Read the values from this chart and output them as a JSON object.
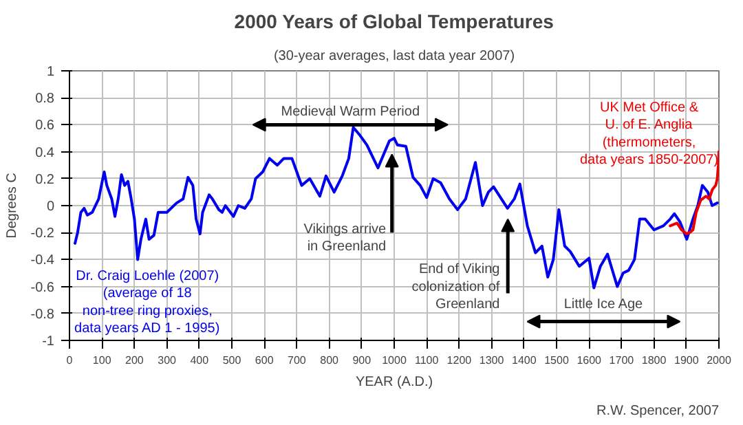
{
  "chart_data": {
    "type": "line",
    "title": "2000 Years of Global Temperatures",
    "subtitle": "(30-year averages, last data year 2007)",
    "xlabel": "YEAR (A.D.)",
    "ylabel": "Degrees C",
    "xlim": [
      0,
      2000
    ],
    "xticks": [
      0,
      100,
      200,
      300,
      400,
      500,
      600,
      700,
      800,
      900,
      1000,
      1100,
      1200,
      1300,
      1400,
      1500,
      1600,
      1700,
      1800,
      1900,
      2000
    ],
    "ylim": [
      -1,
      1
    ],
    "yticks": [
      -1,
      -0.8,
      -0.6,
      -0.4,
      -0.2,
      0,
      0.2,
      0.4,
      0.6,
      0.8,
      1
    ],
    "grid": true,
    "marker": "none",
    "line_style": "solid",
    "series": [
      {
        "name": "Dr. Craig Loehle (2007)\n(average of 18\nnon-tree ring proxies,\ndata years AD 1 - 1995)",
        "color": "#0000ee",
        "x": [
          17,
          25,
          35,
          45,
          55,
          70,
          90,
          100,
          107,
          115,
          130,
          140,
          150,
          160,
          170,
          180,
          190,
          200,
          210,
          220,
          235,
          245,
          260,
          273,
          300,
          330,
          350,
          365,
          380,
          390,
          402,
          410,
          430,
          440,
          460,
          470,
          480,
          505,
          520,
          540,
          560,
          573,
          595,
          616,
          640,
          660,
          685,
          700,
          715,
          740,
          771,
          790,
          815,
          840,
          860,
          874,
          895,
          916,
          950,
          985,
          1000,
          1010,
          1036,
          1058,
          1080,
          1100,
          1120,
          1143,
          1170,
          1195,
          1220,
          1250,
          1272,
          1290,
          1306,
          1330,
          1349,
          1370,
          1387,
          1410,
          1435,
          1455,
          1473,
          1490,
          1507,
          1525,
          1542,
          1570,
          1600,
          1615,
          1635,
          1657,
          1687,
          1705,
          1722,
          1740,
          1756,
          1773,
          1800,
          1829,
          1850,
          1863,
          1880,
          1901,
          1920,
          1935,
          1949,
          1966,
          1979,
          1995
        ],
        "values": [
          -0.28,
          -0.2,
          -0.05,
          -0.02,
          -0.07,
          -0.05,
          0.05,
          0.17,
          0.25,
          0.15,
          0.05,
          -0.08,
          0.05,
          0.23,
          0.15,
          0.18,
          0.05,
          -0.1,
          -0.4,
          -0.25,
          -0.1,
          -0.25,
          -0.22,
          -0.05,
          -0.05,
          0.02,
          0.05,
          0.21,
          0.15,
          -0.1,
          -0.21,
          -0.05,
          0.08,
          0.05,
          -0.03,
          -0.05,
          0.0,
          -0.08,
          0.0,
          -0.02,
          0.05,
          0.2,
          0.25,
          0.35,
          0.3,
          0.35,
          0.35,
          0.25,
          0.15,
          0.2,
          0.07,
          0.22,
          0.1,
          0.22,
          0.35,
          0.58,
          0.52,
          0.45,
          0.28,
          0.48,
          0.5,
          0.45,
          0.44,
          0.21,
          0.15,
          0.06,
          0.2,
          0.17,
          0.05,
          -0.03,
          0.05,
          0.32,
          0.0,
          0.1,
          0.14,
          0.05,
          -0.02,
          0.05,
          0.16,
          -0.15,
          -0.35,
          -0.3,
          -0.53,
          -0.4,
          -0.03,
          -0.3,
          -0.34,
          -0.45,
          -0.39,
          -0.61,
          -0.45,
          -0.36,
          -0.6,
          -0.5,
          -0.48,
          -0.4,
          -0.1,
          -0.1,
          -0.18,
          -0.15,
          -0.1,
          -0.06,
          -0.12,
          -0.25,
          -0.1,
          0.0,
          0.15,
          0.1,
          0.0,
          0.02
        ]
      },
      {
        "name": "UK Met Office &\nU. of E. Anglia\n(thermometers,\ndata years 1850-2007)",
        "color": "#ee0000",
        "x": [
          1850,
          1871,
          1885,
          1900,
          1910,
          1920,
          1930,
          1944,
          1960,
          1970,
          1980,
          1990,
          1995,
          1998,
          2000
        ],
        "values": [
          -0.15,
          -0.13,
          -0.18,
          -0.21,
          -0.2,
          -0.18,
          -0.05,
          0.04,
          0.07,
          0.05,
          0.12,
          0.15,
          0.2,
          0.3,
          0.4
        ]
      }
    ],
    "annotations": [
      "Medieval Warm Period",
      "Vikings arrive\nin Greenland",
      "End of Viking\ncolonization of\nGreenland",
      "Little Ice Age",
      "R.W. Spencer, 2007"
    ]
  }
}
